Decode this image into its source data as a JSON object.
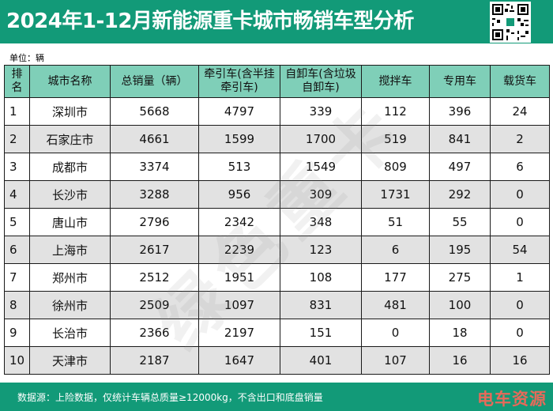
{
  "header": {
    "title": "2024年1-12月新能源重卡城市畅销车型分析",
    "accent_color": "#129a78",
    "qr_icon": "qr-code-icon"
  },
  "unit_label": "单位：辆",
  "table": {
    "header_color": "#7fcfb8",
    "stripe_color": "#e2e2e2",
    "columns": [
      {
        "line1": "排",
        "line2": "名"
      },
      {
        "line1": "城市名称",
        "line2": ""
      },
      {
        "line1": "总销量（辆）",
        "line2": ""
      },
      {
        "line1": "牵引车(含半挂",
        "line2": "牵引车)"
      },
      {
        "line1": "自卸车(含垃圾",
        "line2": "自卸车)"
      },
      {
        "line1": "搅拌车",
        "line2": ""
      },
      {
        "line1": "专用车",
        "line2": ""
      },
      {
        "line1": "载货车",
        "line2": ""
      }
    ],
    "rows": [
      [
        "1",
        "深圳市",
        "5668",
        "4797",
        "339",
        "112",
        "396",
        "24"
      ],
      [
        "2",
        "石家庄市",
        "4661",
        "1599",
        "1700",
        "519",
        "841",
        "2"
      ],
      [
        "3",
        "成都市",
        "3374",
        "513",
        "1549",
        "809",
        "497",
        "6"
      ],
      [
        "4",
        "长沙市",
        "3288",
        "956",
        "309",
        "1731",
        "292",
        "0"
      ],
      [
        "5",
        "唐山市",
        "2796",
        "2342",
        "348",
        "51",
        "55",
        "0"
      ],
      [
        "6",
        "上海市",
        "2617",
        "2239",
        "123",
        "6",
        "195",
        "54"
      ],
      [
        "7",
        "郑州市",
        "2512",
        "1951",
        "108",
        "177",
        "275",
        "1"
      ],
      [
        "8",
        "徐州市",
        "2509",
        "1097",
        "831",
        "481",
        "100",
        "0"
      ],
      [
        "9",
        "长治市",
        "2366",
        "2197",
        "151",
        "0",
        "18",
        "0"
      ],
      [
        "10",
        "天津市",
        "2187",
        "1647",
        "401",
        "107",
        "16",
        "16"
      ]
    ]
  },
  "watermark": "绿色重卡",
  "footer": {
    "note": "数据源：上险数据，仅统计车辆总质量≥12000kg，不含出口和底盘销量",
    "brand": "电车资源",
    "brand_color": "#e66a5a"
  }
}
